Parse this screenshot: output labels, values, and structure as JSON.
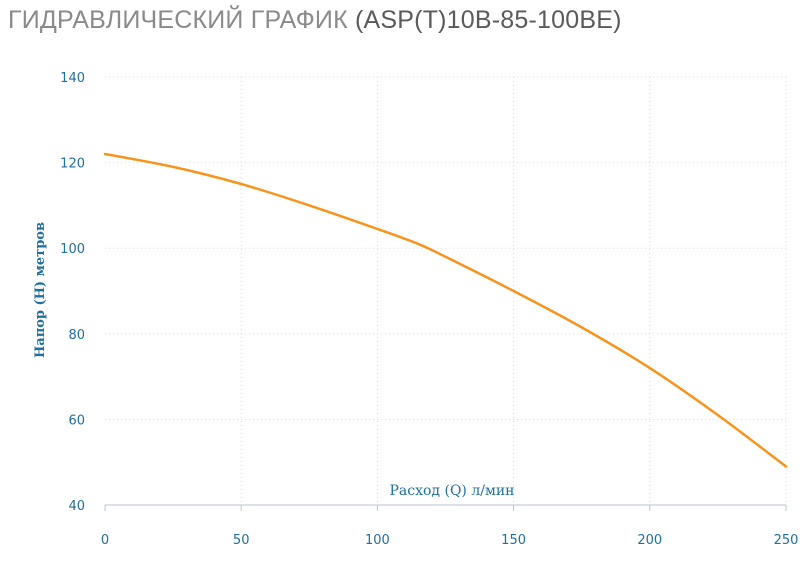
{
  "header": {
    "title_prefix": "ГИДРАВЛИЧЕСКИЙ ГРАФИК",
    "title_model": "(ASP(T)10B-85-100BE)"
  },
  "chart_data": {
    "type": "line",
    "title": "ГИДРАВЛИЧЕСКИЙ ГРАФИК (ASP(T)10B-85-100BE)",
    "xlabel": "Расход (Q) л/мин",
    "ylabel": "Напор (H) метров",
    "xlim": [
      0,
      250
    ],
    "ylim": [
      40,
      140
    ],
    "xticks": [
      0,
      50,
      100,
      150,
      200,
      250
    ],
    "yticks": [
      40,
      60,
      80,
      100,
      120,
      140
    ],
    "grid": true,
    "series": [
      {
        "color": "#f7941d",
        "x": [
          0,
          25,
          50,
          75,
          100,
          115,
          125,
          150,
          175,
          200,
          225,
          250
        ],
        "y": [
          122,
          119,
          115,
          110,
          104.5,
          101,
          98,
          90,
          81.5,
          72,
          61,
          49
        ]
      }
    ]
  }
}
